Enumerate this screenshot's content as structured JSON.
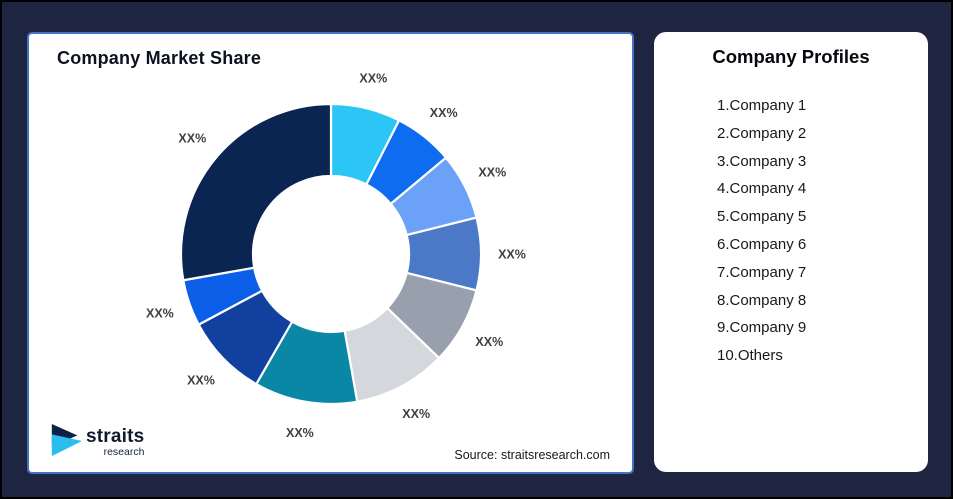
{
  "page": {
    "background_color": "#1d2541",
    "outer_border_color": "#000000",
    "card_border_color": "#4472c4"
  },
  "left_card": {
    "title": "Company Market Share",
    "source": "Source: straitsresearch.com",
    "logo_name": "straits",
    "logo_sub": "research",
    "logo_colors": {
      "navy": "#0e2248",
      "cyan": "#29bdf0"
    }
  },
  "right_card": {
    "title": "Company Profiles",
    "items": [
      "1.Company 1",
      "2.Company 2",
      "3.Company 3",
      "4.Company 4",
      "5.Company 5",
      "6.Company 6",
      "7.Company 7",
      "8.Company 8",
      "9.Company 9",
      "10.Others"
    ]
  },
  "chart_data": {
    "type": "pie",
    "subtype": "donut",
    "title": "Company Market Share",
    "start_angle_deg": 0,
    "clockwise": true,
    "inner_radius_ratio": 0.52,
    "label_style": "outside",
    "note": "Slice values are masked in the source image as XX%; pct_est values are estimated from arc angles.",
    "slices": [
      {
        "name": "Company 1",
        "label": "XX%",
        "pct_est": 7.5,
        "color": "#2bc6f5"
      },
      {
        "name": "Company 2",
        "label": "XX%",
        "pct_est": 6.4,
        "color": "#0e6cf1"
      },
      {
        "name": "Company 3",
        "label": "XX%",
        "pct_est": 7.2,
        "color": "#6ba2f7"
      },
      {
        "name": "Company 4",
        "label": "XX%",
        "pct_est": 7.8,
        "color": "#4b79c8"
      },
      {
        "name": "Company 5",
        "label": "XX%",
        "pct_est": 8.3,
        "color": "#99a0ad"
      },
      {
        "name": "Company 6",
        "label": "XX%",
        "pct_est": 10.0,
        "color": "#d4d8dc"
      },
      {
        "name": "Company 7",
        "label": "XX%",
        "pct_est": 11.1,
        "color": "#0b87a6"
      },
      {
        "name": "Company 8",
        "label": "XX%",
        "pct_est": 8.9,
        "color": "#11409e"
      },
      {
        "name": "Company 9",
        "label": "XX%",
        "pct_est": 5.0,
        "color": "#0b5ee7"
      },
      {
        "name": "Others",
        "label": "XX%",
        "pct_est": 27.8,
        "color": "#0b2553"
      }
    ]
  }
}
